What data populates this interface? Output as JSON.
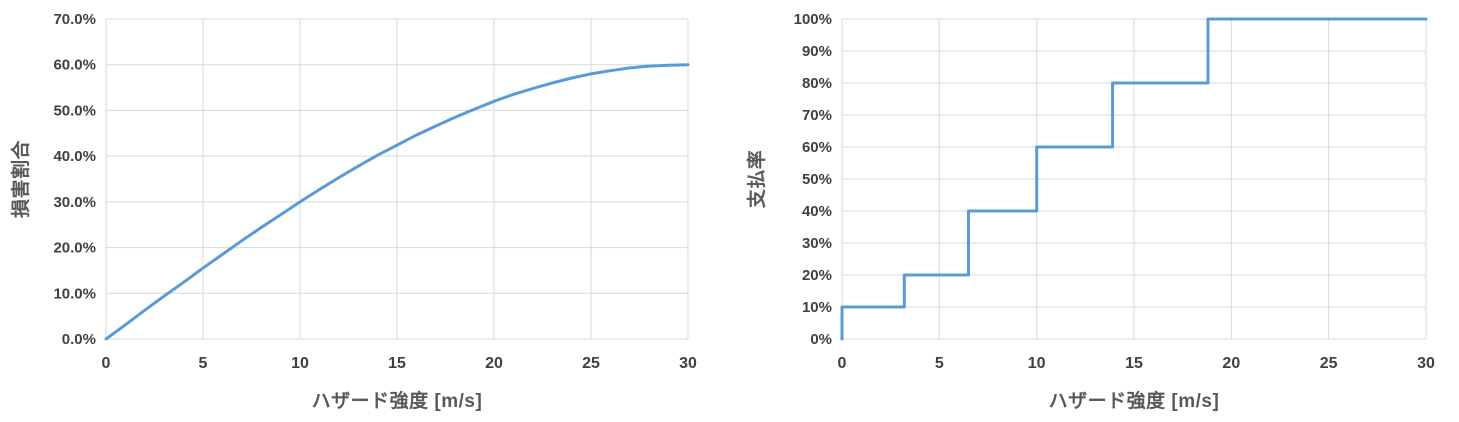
{
  "colors": {
    "line": "#5B9BD5",
    "gridline": "#D9D9D9",
    "tick_text": "#404040",
    "axis_title_text": "#595959",
    "background": "#ffffff"
  },
  "chart_data": [
    {
      "type": "line",
      "name": "damage-ratio-curve",
      "title": "",
      "xlabel": "ハザード強度 [m/s]",
      "ylabel": "損害割合",
      "xlim": [
        0,
        30
      ],
      "ylim": [
        0,
        70
      ],
      "grid": true,
      "legend": "none",
      "xtick_values": [
        0,
        5,
        10,
        15,
        20,
        25,
        30
      ],
      "xtick_labels": [
        "0",
        "5",
        "10",
        "15",
        "20",
        "25",
        "30"
      ],
      "ytick_values": [
        0,
        10,
        20,
        30,
        40,
        50,
        60,
        70
      ],
      "ytick_labels": [
        "0.0%",
        "10.0%",
        "20.0%",
        "30.0%",
        "40.0%",
        "50.0%",
        "60.0%",
        "70.0%"
      ],
      "curve_description": "damage ratio = 60% * sin(pi*x/60), saturating at 60% at x=30",
      "points": [
        [
          0,
          0
        ],
        [
          1,
          3.1
        ],
        [
          2,
          6.3
        ],
        [
          3,
          9.4
        ],
        [
          4,
          12.4
        ],
        [
          5,
          15.5
        ],
        [
          6,
          18.5
        ],
        [
          7,
          21.5
        ],
        [
          8,
          24.4
        ],
        [
          9,
          27.2
        ],
        [
          10,
          30.0
        ],
        [
          11,
          32.7
        ],
        [
          12,
          35.3
        ],
        [
          13,
          37.8
        ],
        [
          14,
          40.2
        ],
        [
          15,
          42.4
        ],
        [
          16,
          44.6
        ],
        [
          17,
          46.6
        ],
        [
          18,
          48.5
        ],
        [
          19,
          50.3
        ],
        [
          20,
          52.0
        ],
        [
          21,
          53.5
        ],
        [
          22,
          54.8
        ],
        [
          23,
          56.0
        ],
        [
          24,
          57.1
        ],
        [
          25,
          58.0
        ],
        [
          26,
          58.7
        ],
        [
          27,
          59.3
        ],
        [
          28,
          59.7
        ],
        [
          29,
          59.9
        ],
        [
          30,
          60.0
        ]
      ]
    },
    {
      "type": "line",
      "name": "payout-rate-steps",
      "title": "",
      "xlabel": "ハザード強度 [m/s]",
      "ylabel": "支払率",
      "xlim": [
        0,
        30
      ],
      "ylim": [
        0,
        100
      ],
      "grid": true,
      "legend": "none",
      "xtick_values": [
        0,
        5,
        10,
        15,
        20,
        25,
        30
      ],
      "xtick_labels": [
        "0",
        "5",
        "10",
        "15",
        "20",
        "25",
        "30"
      ],
      "ytick_values": [
        0,
        10,
        20,
        30,
        40,
        50,
        60,
        70,
        80,
        90,
        100
      ],
      "ytick_labels": [
        "0%",
        "10%",
        "20%",
        "30%",
        "40%",
        "50%",
        "60%",
        "70%",
        "80%",
        "90%",
        "100%"
      ],
      "steps": [
        {
          "x_range": [
            0,
            3.2
          ],
          "payout_pct": 10
        },
        {
          "x_range": [
            3.2,
            6.5
          ],
          "payout_pct": 20
        },
        {
          "x_range": [
            6.5,
            10
          ],
          "payout_pct": 40
        },
        {
          "x_range": [
            10,
            13.9
          ],
          "payout_pct": 60
        },
        {
          "x_range": [
            13.9,
            18.8
          ],
          "payout_pct": 80
        },
        {
          "x_range": [
            18.8,
            30
          ],
          "payout_pct": 100
        }
      ],
      "points": [
        [
          0,
          0
        ],
        [
          0,
          10
        ],
        [
          3.2,
          10
        ],
        [
          3.2,
          20
        ],
        [
          6.5,
          20
        ],
        [
          6.5,
          40
        ],
        [
          10,
          40
        ],
        [
          10,
          60
        ],
        [
          13.9,
          60
        ],
        [
          13.9,
          80
        ],
        [
          18.8,
          80
        ],
        [
          18.8,
          100
        ],
        [
          30,
          100
        ]
      ]
    }
  ]
}
